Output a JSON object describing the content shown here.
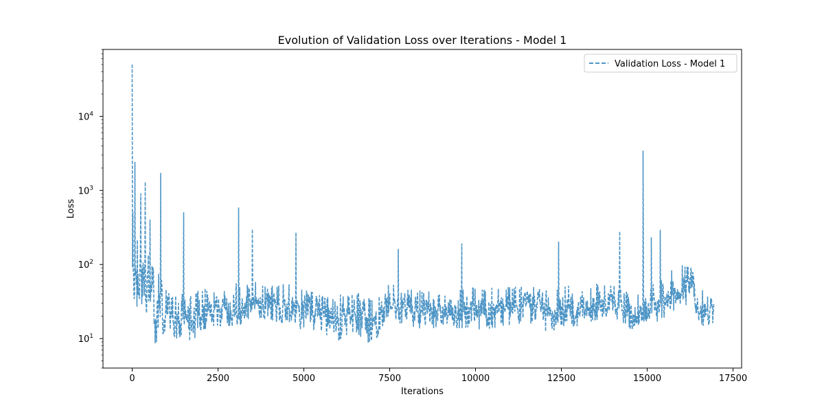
{
  "chart_data": {
    "type": "line",
    "title": "Evolution of Validation Loss over Iterations - Model 1",
    "xlabel": "Iterations",
    "ylabel": "Loss",
    "xlim": [
      -850,
      17750
    ],
    "ylim": [
      4,
      80000
    ],
    "yscale": "log",
    "grid": false,
    "legend_position": "top-right",
    "x_ticks": [
      0,
      2500,
      5000,
      7500,
      10000,
      12500,
      15000,
      17500
    ],
    "x_tick_labels": [
      "0",
      "2500",
      "5000",
      "7500",
      "10000",
      "12500",
      "15000",
      "17500"
    ],
    "y_ticks": [
      10,
      100,
      1000,
      10000
    ],
    "y_tick_labels": [
      {
        "base": "10",
        "exp": "1"
      },
      {
        "base": "10",
        "exp": "2"
      },
      {
        "base": "10",
        "exp": "3"
      },
      {
        "base": "10",
        "exp": "4"
      }
    ],
    "series": [
      {
        "name": "Validation Loss - Model 1",
        "color": "#4c94c5",
        "linestyle": "dashed",
        "x_start": 0,
        "x_end": 16950,
        "n_points": 1700,
        "envelope": [
          {
            "x": 0,
            "low": 28,
            "mid": 60,
            "high": 250
          },
          {
            "x": 300,
            "low": 25,
            "mid": 70,
            "high": 200
          },
          {
            "x": 700,
            "low": 8,
            "mid": 20,
            "high": 80
          },
          {
            "x": 1000,
            "low": 14,
            "mid": 25,
            "high": 60
          },
          {
            "x": 1500,
            "low": 7,
            "mid": 17,
            "high": 45
          },
          {
            "x": 2000,
            "low": 12,
            "mid": 20,
            "high": 45
          },
          {
            "x": 2500,
            "low": 15,
            "mid": 25,
            "high": 60
          },
          {
            "x": 3000,
            "low": 14,
            "mid": 22,
            "high": 55
          },
          {
            "x": 3500,
            "low": 20,
            "mid": 32,
            "high": 60
          },
          {
            "x": 4000,
            "low": 18,
            "mid": 28,
            "high": 55
          },
          {
            "x": 4500,
            "low": 16,
            "mid": 25,
            "high": 55
          },
          {
            "x": 5000,
            "low": 13,
            "mid": 22,
            "high": 45
          },
          {
            "x": 5500,
            "low": 12,
            "mid": 20,
            "high": 40
          },
          {
            "x": 6000,
            "low": 9,
            "mid": 17,
            "high": 40
          },
          {
            "x": 6500,
            "low": 12,
            "mid": 20,
            "high": 45
          },
          {
            "x": 7000,
            "low": 8,
            "mid": 15,
            "high": 35
          },
          {
            "x": 7500,
            "low": 22,
            "mid": 32,
            "high": 55
          },
          {
            "x": 8000,
            "low": 13,
            "mid": 25,
            "high": 50
          },
          {
            "x": 8500,
            "low": 12,
            "mid": 22,
            "high": 45
          },
          {
            "x": 9000,
            "low": 15,
            "mid": 25,
            "high": 50
          },
          {
            "x": 9500,
            "low": 14,
            "mid": 24,
            "high": 48
          },
          {
            "x": 10000,
            "low": 13,
            "mid": 24,
            "high": 50
          },
          {
            "x": 10500,
            "low": 14,
            "mid": 25,
            "high": 50
          },
          {
            "x": 11000,
            "low": 15,
            "mid": 26,
            "high": 52
          },
          {
            "x": 11500,
            "low": 17,
            "mid": 30,
            "high": 55
          },
          {
            "x": 12000,
            "low": 12,
            "mid": 22,
            "high": 45
          },
          {
            "x": 12500,
            "low": 14,
            "mid": 25,
            "high": 50
          },
          {
            "x": 13000,
            "low": 15,
            "mid": 26,
            "high": 55
          },
          {
            "x": 13500,
            "low": 18,
            "mid": 28,
            "high": 55
          },
          {
            "x": 14000,
            "low": 20,
            "mid": 30,
            "high": 55
          },
          {
            "x": 14500,
            "low": 13,
            "mid": 22,
            "high": 40
          },
          {
            "x": 15000,
            "low": 16,
            "mid": 26,
            "high": 50
          },
          {
            "x": 15500,
            "low": 18,
            "mid": 35,
            "high": 80
          },
          {
            "x": 16000,
            "low": 30,
            "mid": 55,
            "high": 100
          },
          {
            "x": 16300,
            "low": 25,
            "mid": 50,
            "high": 90
          },
          {
            "x": 16600,
            "low": 14,
            "mid": 22,
            "high": 45
          },
          {
            "x": 16950,
            "low": 15,
            "mid": 22,
            "high": 35
          }
        ],
        "spikes": [
          {
            "x": 0,
            "y": 50000
          },
          {
            "x": 20,
            "y": 500
          },
          {
            "x": 80,
            "y": 2400
          },
          {
            "x": 250,
            "y": 900
          },
          {
            "x": 380,
            "y": 1300
          },
          {
            "x": 520,
            "y": 400
          },
          {
            "x": 830,
            "y": 1700
          },
          {
            "x": 1500,
            "y": 500
          },
          {
            "x": 3100,
            "y": 580
          },
          {
            "x": 3500,
            "y": 300
          },
          {
            "x": 4770,
            "y": 270
          },
          {
            "x": 7750,
            "y": 160
          },
          {
            "x": 9600,
            "y": 190
          },
          {
            "x": 12420,
            "y": 200
          },
          {
            "x": 14200,
            "y": 280
          },
          {
            "x": 14880,
            "y": 3400
          },
          {
            "x": 15120,
            "y": 230
          },
          {
            "x": 15380,
            "y": 290
          }
        ]
      }
    ]
  }
}
